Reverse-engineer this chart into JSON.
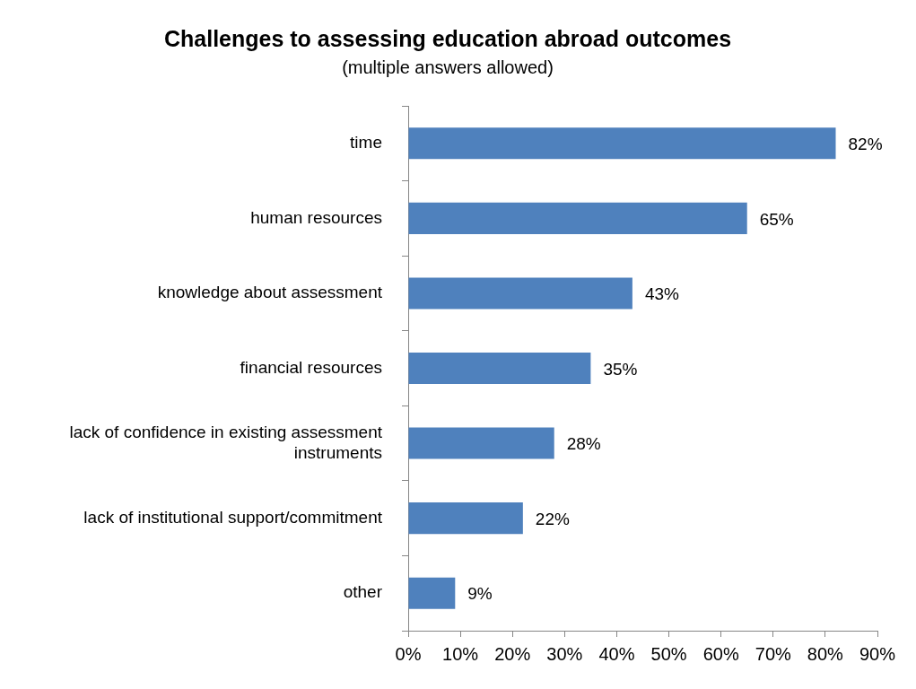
{
  "chart_data": {
    "type": "bar",
    "orientation": "horizontal",
    "title": "Challenges to assessing education abroad outcomes",
    "subtitle": "(multiple answers allowed)",
    "categories": [
      "time",
      "human resources",
      "knowledge about assessment",
      "financial resources",
      "lack of confidence in existing assessment instruments",
      "lack of institutional support/commitment",
      "other"
    ],
    "values": [
      82,
      65,
      43,
      35,
      28,
      22,
      9
    ],
    "color": "#4f81bd",
    "value_labels": [
      "82%",
      "65%",
      "43%",
      "35%",
      "28%",
      "22%",
      "9%"
    ],
    "xlim": [
      0,
      90
    ],
    "xticks": [
      {
        "value": 0,
        "label": "0%"
      },
      {
        "value": 10,
        "label": "10%"
      },
      {
        "value": 20,
        "label": "20%"
      },
      {
        "value": 30,
        "label": "30%"
      },
      {
        "value": 40,
        "label": "40%"
      },
      {
        "value": 50,
        "label": "50%"
      },
      {
        "value": 60,
        "label": "60%"
      },
      {
        "value": 70,
        "label": "70%"
      },
      {
        "value": 80,
        "label": "80%"
      },
      {
        "value": 90,
        "label": "90%"
      }
    ],
    "grid": false,
    "legend": false
  }
}
